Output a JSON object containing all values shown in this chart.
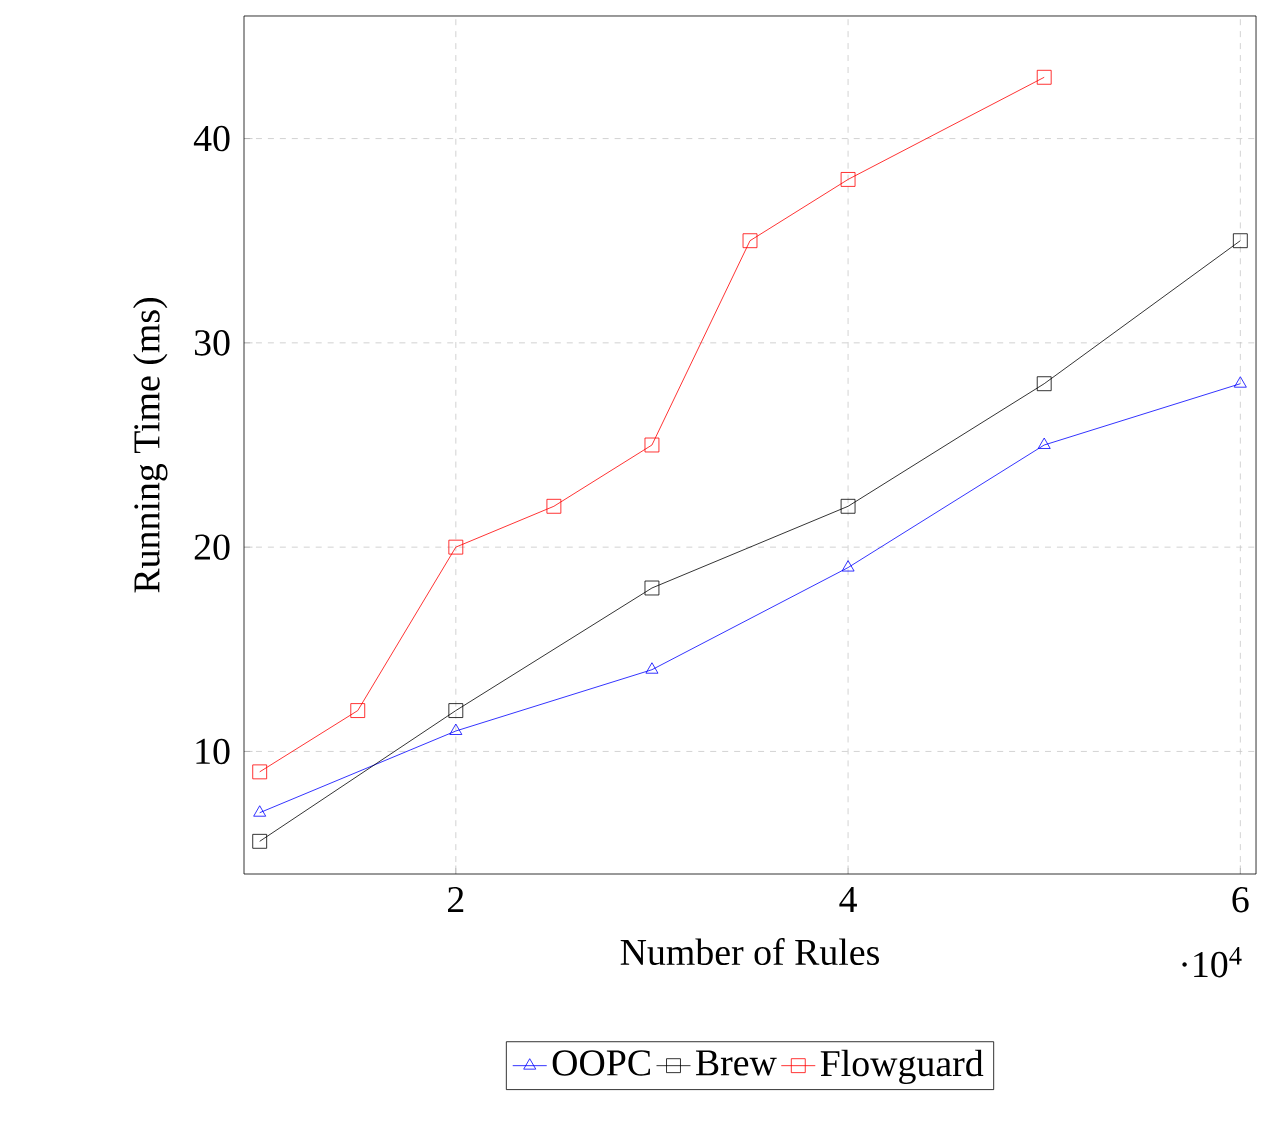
{
  "chart_data": {
    "type": "line",
    "xlabel": "Number of Rules",
    "ylabel": "Running Time (ms)",
    "annotations": [
      "·10$^{4}$"
    ],
    "xlim": [
      0.92,
      6.08
    ],
    "ylim": [
      4,
      46
    ],
    "xticks": [
      2,
      4,
      6
    ],
    "yticks": [
      10,
      20,
      30,
      40
    ],
    "grid": true,
    "legend": "bottom",
    "line_style": "solid",
    "series": [
      {
        "name": "OOPC",
        "color": "#0000ff",
        "marker": "triangle",
        "x": [
          1,
          2,
          3,
          4,
          5,
          6
        ],
        "values": [
          7,
          11,
          14,
          19,
          25,
          28
        ]
      },
      {
        "name": "Brew",
        "color": "#000000",
        "marker": "square",
        "x": [
          1,
          2,
          3,
          4,
          5,
          6
        ],
        "values": [
          5.6,
          12,
          18,
          22,
          28,
          35
        ]
      },
      {
        "name": "Flowguard",
        "color": "#ff0000",
        "marker": "square",
        "x": [
          1,
          1.5,
          2,
          2.5,
          3,
          3.5,
          4,
          5
        ],
        "values": [
          9,
          12,
          20,
          22,
          25,
          35,
          38,
          43
        ]
      }
    ]
  }
}
